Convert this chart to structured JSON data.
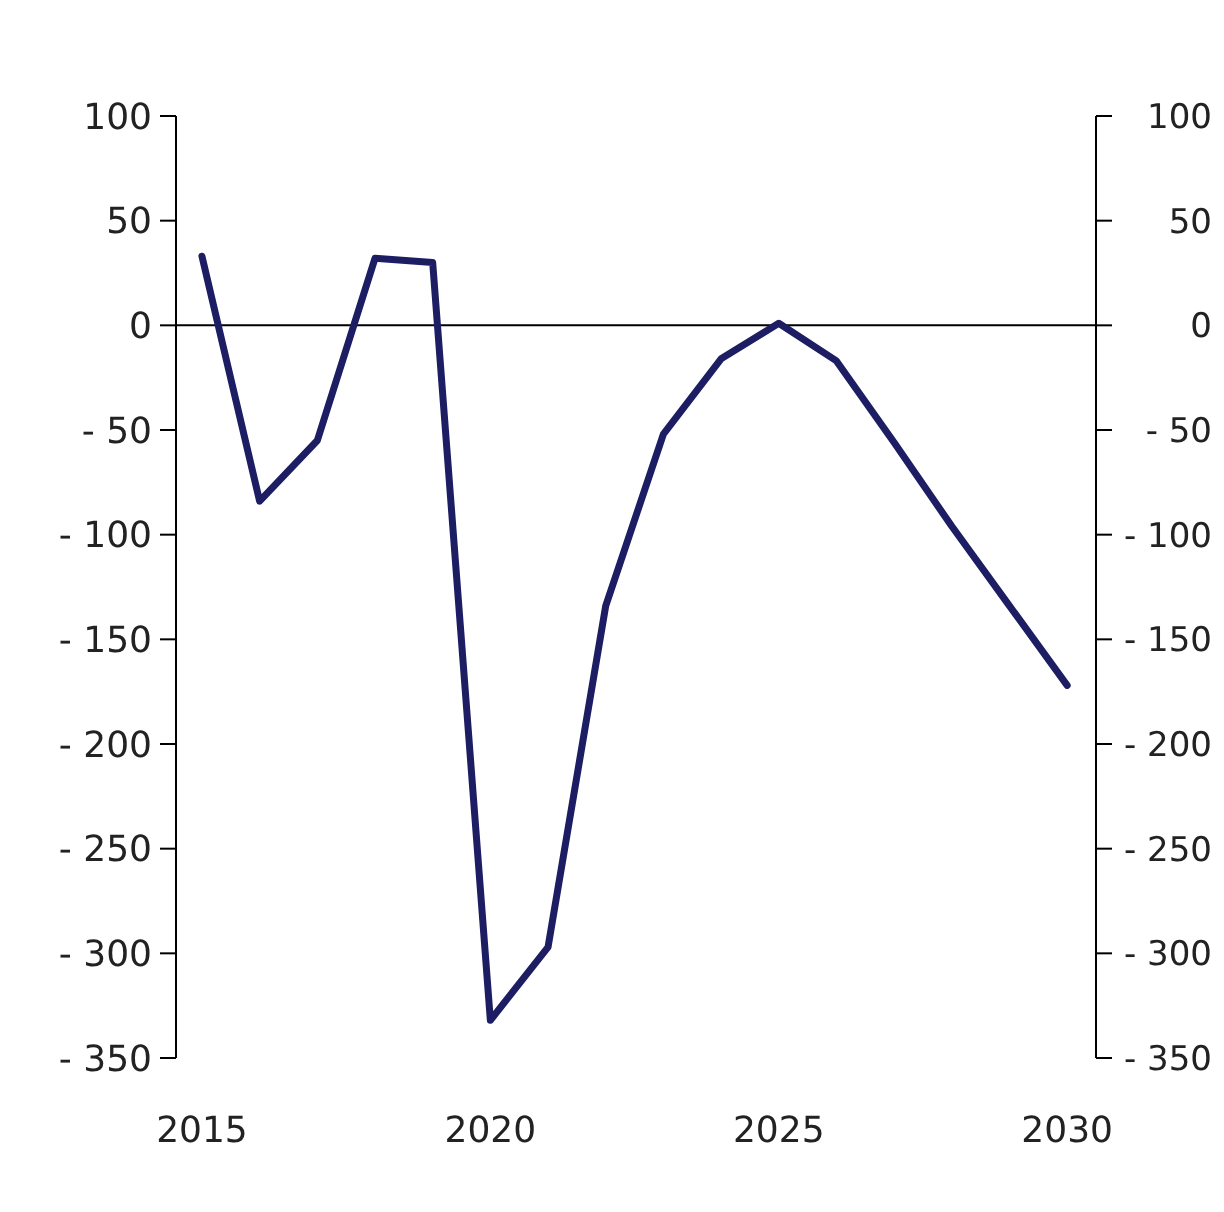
{
  "chart_data": {
    "type": "line",
    "x": [
      2015,
      2016,
      2017,
      2018,
      2019,
      2020,
      2021,
      2022,
      2023,
      2024,
      2025,
      2026,
      2027,
      2028,
      2029,
      2030
    ],
    "series": [
      {
        "color": "#1c1d63",
        "values": [
          33,
          -84,
          -55,
          32,
          30,
          -332,
          -297,
          -134,
          -52,
          -16,
          1,
          -17,
          -56,
          -96,
          -134,
          -172
        ]
      }
    ],
    "xlim": [
      2014.55,
      2030.5
    ],
    "xticks": [
      2015,
      2020,
      2025,
      2030
    ],
    "ylim": [
      -350,
      100
    ],
    "yticks": [
      100,
      50,
      0,
      {
        "value": -50,
        "label": "- 50"
      },
      {
        "value": -100,
        "label": "- 100"
      },
      {
        "value": -150,
        "label": "- 150"
      },
      {
        "value": -200,
        "label": "- 200"
      },
      {
        "value": -250,
        "label": "- 250"
      },
      {
        "value": -300,
        "label": "- 300"
      },
      {
        "value": -350,
        "label": "- 350"
      }
    ],
    "y2lim": [
      -350,
      100
    ],
    "y2ticks": [
      100,
      50,
      0,
      {
        "value": -50,
        "label": "- 50"
      },
      {
        "value": -100,
        "label": "- 100"
      },
      {
        "value": -150,
        "label": "- 150"
      },
      {
        "value": -200,
        "label": "- 200"
      },
      {
        "value": -250,
        "label": "- 250"
      },
      {
        "value": -300,
        "label": "- 300"
      },
      {
        "value": -350,
        "label": "- 350"
      }
    ],
    "ref_lines": [
      {
        "axis": "y",
        "value": 0,
        "color": "#000000"
      }
    ],
    "grid": false,
    "marker": "none",
    "line_style": "solid"
  }
}
